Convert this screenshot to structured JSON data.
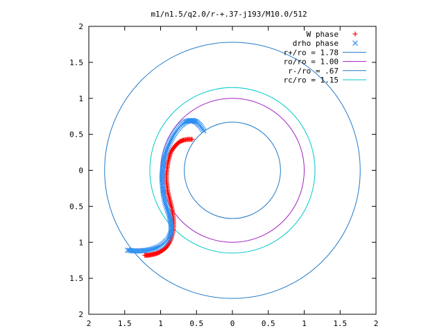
{
  "chart_data": {
    "type": "scatter",
    "title": "m1/n1.5/q2.0/r-+.37-j193/M10.0/512",
    "xlabel": "",
    "ylabel": "",
    "xlim": [
      -2,
      2
    ],
    "ylim": [
      -2,
      2
    ],
    "x_ticks": [
      "2",
      "1.5",
      "1",
      "0.5",
      "0",
      "0.5",
      "1",
      "1.5",
      "2"
    ],
    "x_tick_values": [
      -2,
      -1.5,
      -1,
      -0.5,
      0,
      0.5,
      1,
      1.5,
      2
    ],
    "y_ticks": [
      "2",
      "1.5",
      "1",
      "0.5",
      "0",
      "0.5",
      "1",
      "1.5",
      "2"
    ],
    "y_tick_values": [
      2,
      1.5,
      1,
      0.5,
      0,
      -0.5,
      -1,
      -1.5,
      -2
    ],
    "grid": false,
    "legend_position": "top-right",
    "series": [
      {
        "name": "W phase",
        "kind": "points",
        "marker": "+",
        "color": "#ff0000",
        "points": [
          [
            -0.56,
            0.43
          ],
          [
            -0.62,
            0.43
          ],
          [
            -0.68,
            0.42
          ],
          [
            -0.73,
            0.4
          ],
          [
            -0.78,
            0.36
          ],
          [
            -0.82,
            0.31
          ],
          [
            -0.86,
            0.25
          ],
          [
            -0.88,
            0.18
          ],
          [
            -0.9,
            0.1
          ],
          [
            -0.91,
            0.02
          ],
          [
            -0.92,
            -0.06
          ],
          [
            -0.92,
            -0.14
          ],
          [
            -0.91,
            -0.22
          ],
          [
            -0.9,
            -0.3
          ],
          [
            -0.88,
            -0.38
          ],
          [
            -0.86,
            -0.46
          ],
          [
            -0.84,
            -0.54
          ],
          [
            -0.83,
            -0.62
          ],
          [
            -0.82,
            -0.7
          ],
          [
            -0.82,
            -0.78
          ],
          [
            -0.83,
            -0.86
          ],
          [
            -0.85,
            -0.94
          ],
          [
            -0.88,
            -1.01
          ],
          [
            -0.92,
            -1.07
          ],
          [
            -0.97,
            -1.11
          ],
          [
            -1.02,
            -1.14
          ],
          [
            -1.07,
            -1.16
          ],
          [
            -1.12,
            -1.17
          ],
          [
            -1.17,
            -1.18
          ],
          [
            -1.22,
            -1.18
          ]
        ]
      },
      {
        "name": "drho phase",
        "kind": "points",
        "marker": "x",
        "color": "#2e8ef0",
        "points": [
          [
            -0.4,
            0.55
          ],
          [
            -0.45,
            0.62
          ],
          [
            -0.5,
            0.67
          ],
          [
            -0.55,
            0.69
          ],
          [
            -0.6,
            0.69
          ],
          [
            -0.66,
            0.67
          ],
          [
            -0.72,
            0.62
          ],
          [
            -0.78,
            0.55
          ],
          [
            -0.83,
            0.47
          ],
          [
            -0.87,
            0.39
          ],
          [
            -0.91,
            0.3
          ],
          [
            -0.94,
            0.21
          ],
          [
            -0.96,
            0.12
          ],
          [
            -0.97,
            0.03
          ],
          [
            -0.98,
            -0.06
          ],
          [
            -0.98,
            -0.15
          ],
          [
            -0.97,
            -0.25
          ],
          [
            -0.96,
            -0.34
          ],
          [
            -0.94,
            -0.44
          ],
          [
            -0.91,
            -0.53
          ],
          [
            -0.88,
            -0.62
          ],
          [
            -0.86,
            -0.71
          ],
          [
            -0.85,
            -0.8
          ],
          [
            -0.86,
            -0.88
          ],
          [
            -0.89,
            -0.95
          ],
          [
            -0.95,
            -1.01
          ],
          [
            -1.02,
            -1.06
          ],
          [
            -1.1,
            -1.09
          ],
          [
            -1.19,
            -1.11
          ],
          [
            -1.28,
            -1.12
          ],
          [
            -1.37,
            -1.12
          ],
          [
            -1.46,
            -1.11
          ]
        ]
      },
      {
        "name": "r+/ro = 1.78",
        "kind": "circle",
        "radius": 1.78,
        "color": "#1f78c8"
      },
      {
        "name": "ro/ro = 1.00",
        "kind": "circle",
        "radius": 1.0,
        "color": "#a020c0"
      },
      {
        "name": "r-/ro = .67",
        "kind": "circle",
        "radius": 0.67,
        "color": "#1f78c8"
      },
      {
        "name": "rc/ro = 1.15",
        "kind": "circle",
        "radius": 1.15,
        "color": "#00c8c8"
      }
    ]
  }
}
